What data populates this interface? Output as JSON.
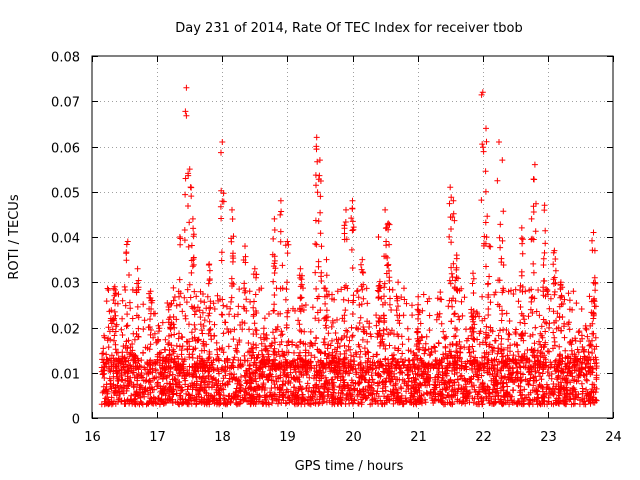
{
  "chart_data": {
    "type": "scatter",
    "title": "Day 231 of 2014, Rate Of TEC Index for receiver tbob",
    "xlabel": "GPS time / hours",
    "ylabel": "ROTI / TECUs",
    "xlim": [
      16,
      24
    ],
    "ylim": [
      0,
      0.08
    ],
    "xticks": [
      16,
      17,
      18,
      19,
      20,
      21,
      22,
      23,
      24
    ],
    "xtick_labels": [
      "16",
      "17",
      "18",
      "19",
      "20",
      "21",
      "22",
      "23",
      "24"
    ],
    "yticks": [
      0,
      0.01,
      0.02,
      0.03,
      0.04,
      0.05,
      0.06,
      0.07,
      0.08
    ],
    "ytick_labels": [
      "0",
      "0.01",
      "0.02",
      "0.03",
      "0.04",
      "0.05",
      "0.06",
      "0.07",
      "0.08"
    ],
    "grid": true,
    "marker": "+",
    "color": "#ff0000",
    "data_range": [
      16.15,
      23.75
    ],
    "baseline": {
      "min": 0.003,
      "max": 0.013
    },
    "peaks": [
      {
        "x": 16.35,
        "y": 0.029
      },
      {
        "x": 16.55,
        "y": 0.039
      },
      {
        "x": 16.7,
        "y": 0.033
      },
      {
        "x": 16.9,
        "y": 0.028
      },
      {
        "x": 17.2,
        "y": 0.025
      },
      {
        "x": 17.35,
        "y": 0.04
      },
      {
        "x": 17.45,
        "y": 0.073
      },
      {
        "x": 17.5,
        "y": 0.055
      },
      {
        "x": 17.55,
        "y": 0.044
      },
      {
        "x": 17.8,
        "y": 0.034
      },
      {
        "x": 18.0,
        "y": 0.061
      },
      {
        "x": 18.15,
        "y": 0.046
      },
      {
        "x": 18.35,
        "y": 0.038
      },
      {
        "x": 18.5,
        "y": 0.033
      },
      {
        "x": 18.8,
        "y": 0.044
      },
      {
        "x": 18.9,
        "y": 0.048
      },
      {
        "x": 19.0,
        "y": 0.039
      },
      {
        "x": 19.2,
        "y": 0.033
      },
      {
        "x": 19.45,
        "y": 0.062
      },
      {
        "x": 19.5,
        "y": 0.057
      },
      {
        "x": 19.6,
        "y": 0.035
      },
      {
        "x": 19.9,
        "y": 0.046
      },
      {
        "x": 20.0,
        "y": 0.048
      },
      {
        "x": 20.15,
        "y": 0.035
      },
      {
        "x": 20.4,
        "y": 0.04
      },
      {
        "x": 20.5,
        "y": 0.046
      },
      {
        "x": 20.55,
        "y": 0.043
      },
      {
        "x": 20.7,
        "y": 0.03
      },
      {
        "x": 21.0,
        "y": 0.024
      },
      {
        "x": 21.5,
        "y": 0.051
      },
      {
        "x": 21.55,
        "y": 0.048
      },
      {
        "x": 21.6,
        "y": 0.036
      },
      {
        "x": 21.85,
        "y": 0.032
      },
      {
        "x": 22.0,
        "y": 0.072
      },
      {
        "x": 22.05,
        "y": 0.064
      },
      {
        "x": 22.1,
        "y": 0.038
      },
      {
        "x": 22.25,
        "y": 0.061
      },
      {
        "x": 22.3,
        "y": 0.057
      },
      {
        "x": 22.6,
        "y": 0.042
      },
      {
        "x": 22.75,
        "y": 0.044
      },
      {
        "x": 22.8,
        "y": 0.056
      },
      {
        "x": 22.95,
        "y": 0.047
      },
      {
        "x": 23.1,
        "y": 0.037
      },
      {
        "x": 23.2,
        "y": 0.03
      },
      {
        "x": 23.7,
        "y": 0.041
      },
      {
        "x": 23.72,
        "y": 0.031
      }
    ]
  }
}
